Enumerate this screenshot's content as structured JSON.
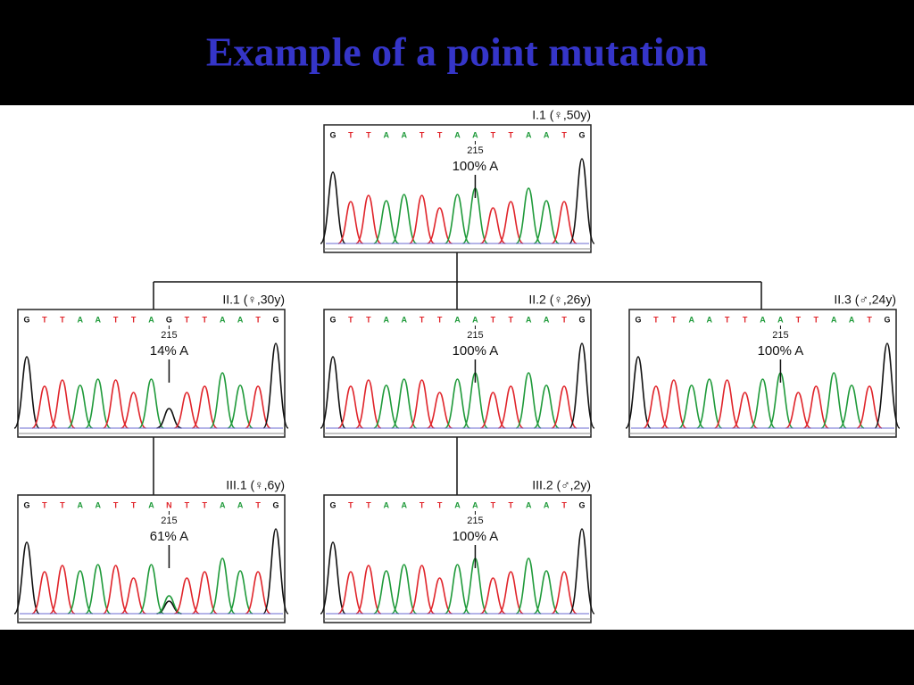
{
  "title": "Example of a point mutation",
  "base_colors": {
    "G": "#111111",
    "T": "#e0242a",
    "A": "#1f9a3a",
    "N": "#e0242a"
  },
  "panels": [
    {
      "label": "I.1 (♀,50y)",
      "sequence": [
        "G",
        "T",
        "T",
        "A",
        "A",
        "T",
        "T",
        "A",
        "A",
        "T",
        "T",
        "A",
        "A",
        "T",
        "G"
      ],
      "position": 215,
      "percent": "100% A"
    },
    {
      "label": "II.1 (♀,30y)",
      "sequence": [
        "G",
        "T",
        "T",
        "A",
        "A",
        "T",
        "T",
        "A",
        "G",
        "T",
        "T",
        "A",
        "A",
        "T",
        "G"
      ],
      "position": 215,
      "percent": "14% A"
    },
    {
      "label": "II.2 (♀,26y)",
      "sequence": [
        "G",
        "T",
        "T",
        "A",
        "A",
        "T",
        "T",
        "A",
        "A",
        "T",
        "T",
        "A",
        "A",
        "T",
        "G"
      ],
      "position": 215,
      "percent": "100% A"
    },
    {
      "label": "II.3 (♂,24y)",
      "sequence": [
        "G",
        "T",
        "T",
        "A",
        "A",
        "T",
        "T",
        "A",
        "A",
        "T",
        "T",
        "A",
        "A",
        "T",
        "G"
      ],
      "position": 215,
      "percent": "100% A"
    },
    {
      "label": "III.1 (♀,6y)",
      "sequence": [
        "G",
        "T",
        "T",
        "A",
        "A",
        "T",
        "T",
        "A",
        "N",
        "T",
        "T",
        "A",
        "A",
        "T",
        "G"
      ],
      "position": 215,
      "percent": "61% A"
    },
    {
      "label": "III.2 (♂,2y)",
      "sequence": [
        "G",
        "T",
        "T",
        "A",
        "A",
        "T",
        "T",
        "A",
        "A",
        "T",
        "T",
        "A",
        "A",
        "T",
        "G"
      ],
      "position": 215,
      "percent": "100% A"
    }
  ]
}
